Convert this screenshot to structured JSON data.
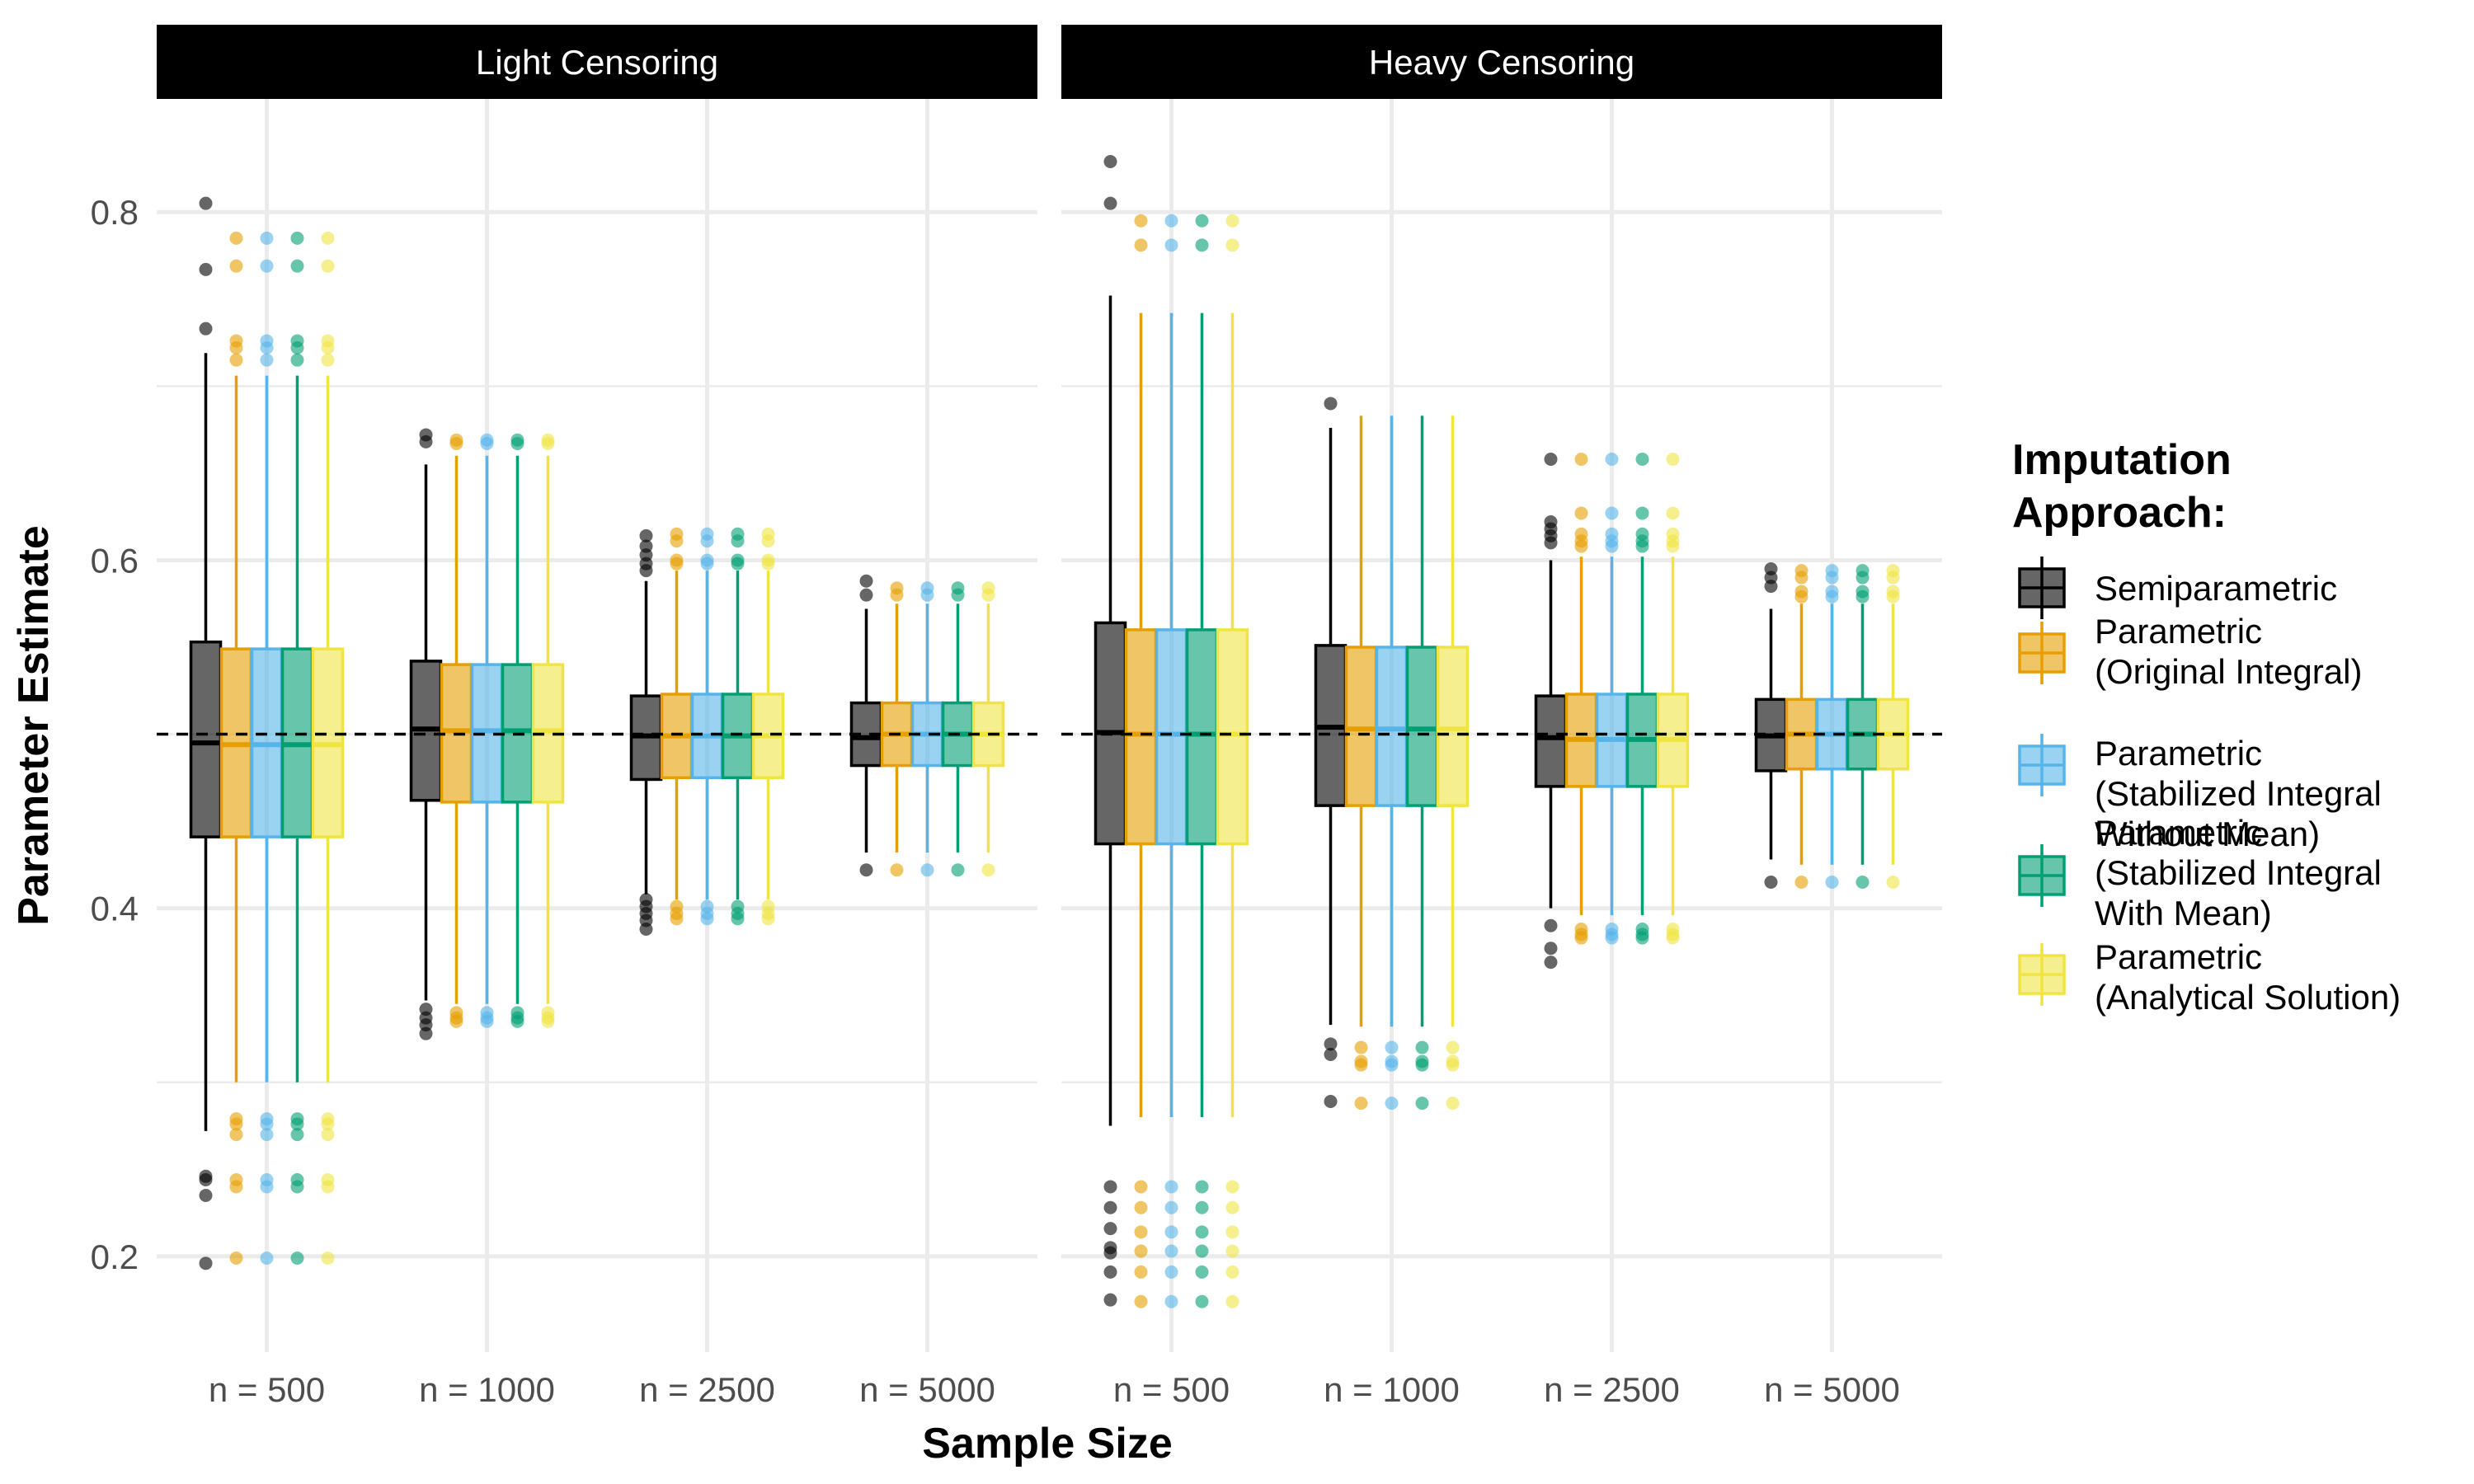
{
  "chart_data": {
    "type": "boxplot",
    "xlabel": "Sample Size",
    "ylabel": "Parameter Estimate",
    "ylim": [
      0.145,
      0.865
    ],
    "y_ticks": [
      0.2,
      0.4,
      0.6,
      0.8
    ],
    "y_tick_labels": [
      "0.2",
      "0.4",
      "0.6",
      "0.8"
    ],
    "reference_line": 0.5,
    "grid": true,
    "legend_position": "right",
    "legend_title": [
      "Imputation",
      "Approach:"
    ],
    "categories": [
      "n = 500",
      "n = 1000",
      "n = 2500",
      "n = 5000"
    ],
    "series": [
      {
        "name": "Semiparametric",
        "label_lines": [
          "Semiparametric"
        ],
        "color": "#000000"
      },
      {
        "name": "Parametric (Original Integral)",
        "label_lines": [
          "Parametric",
          "(Original Integral)"
        ],
        "color": "#E69F00"
      },
      {
        "name": "Parametric (Stabilized Integral Without Mean)",
        "label_lines": [
          "Parametric",
          "(Stabilized Integral",
          "Without Mean)"
        ],
        "color": "#56B4E9"
      },
      {
        "name": "Parametric (Stabilized Integral With Mean)",
        "label_lines": [
          "Parametric",
          "(Stabilized Integral",
          " With Mean)"
        ],
        "color": "#009E73"
      },
      {
        "name": "Parametric (Analytical Solution)",
        "label_lines": [
          "Parametric",
          "(Analytical Solution)"
        ],
        "color": "#F0E442"
      }
    ],
    "panels": [
      {
        "title": "Light Censoring",
        "groups": [
          {
            "boxes": [
              {
                "low": 0.272,
                "q1": 0.441,
                "median": 0.495,
                "q3": 0.553,
                "high": 0.719,
                "outliers": [
                  0.805,
                  0.767,
                  0.733,
                  0.246,
                  0.244,
                  0.235,
                  0.196
                ]
              },
              {
                "low": 0.3,
                "q1": 0.441,
                "median": 0.494,
                "q3": 0.549,
                "high": 0.706,
                "outliers": [
                  0.785,
                  0.769,
                  0.726,
                  0.722,
                  0.715,
                  0.279,
                  0.276,
                  0.27,
                  0.244,
                  0.24,
                  0.199
                ]
              },
              {
                "low": 0.3,
                "q1": 0.441,
                "median": 0.494,
                "q3": 0.549,
                "high": 0.706,
                "outliers": [
                  0.785,
                  0.769,
                  0.726,
                  0.722,
                  0.715,
                  0.279,
                  0.276,
                  0.27,
                  0.244,
                  0.24,
                  0.199
                ]
              },
              {
                "low": 0.3,
                "q1": 0.441,
                "median": 0.494,
                "q3": 0.549,
                "high": 0.706,
                "outliers": [
                  0.785,
                  0.769,
                  0.726,
                  0.722,
                  0.715,
                  0.279,
                  0.276,
                  0.27,
                  0.244,
                  0.24,
                  0.199
                ]
              },
              {
                "low": 0.3,
                "q1": 0.441,
                "median": 0.494,
                "q3": 0.549,
                "high": 0.706,
                "outliers": [
                  0.785,
                  0.769,
                  0.726,
                  0.722,
                  0.715,
                  0.279,
                  0.276,
                  0.27,
                  0.244,
                  0.24,
                  0.199
                ]
              }
            ]
          },
          {
            "boxes": [
              {
                "low": 0.347,
                "q1": 0.462,
                "median": 0.503,
                "q3": 0.542,
                "high": 0.655,
                "outliers": [
                  0.672,
                  0.668,
                  0.342,
                  0.337,
                  0.333,
                  0.328
                ]
              },
              {
                "low": 0.345,
                "q1": 0.461,
                "median": 0.502,
                "q3": 0.54,
                "high": 0.66,
                "outliers": [
                  0.669,
                  0.667,
                  0.34,
                  0.337,
                  0.335
                ]
              },
              {
                "low": 0.345,
                "q1": 0.461,
                "median": 0.502,
                "q3": 0.54,
                "high": 0.66,
                "outliers": [
                  0.669,
                  0.667,
                  0.34,
                  0.337,
                  0.335
                ]
              },
              {
                "low": 0.345,
                "q1": 0.461,
                "median": 0.502,
                "q3": 0.54,
                "high": 0.66,
                "outliers": [
                  0.669,
                  0.667,
                  0.34,
                  0.337,
                  0.335
                ]
              },
              {
                "low": 0.345,
                "q1": 0.461,
                "median": 0.502,
                "q3": 0.54,
                "high": 0.66,
                "outliers": [
                  0.669,
                  0.667,
                  0.34,
                  0.337,
                  0.335
                ]
              }
            ]
          },
          {
            "boxes": [
              {
                "low": 0.408,
                "q1": 0.474,
                "median": 0.499,
                "q3": 0.522,
                "high": 0.588,
                "outliers": [
                  0.614,
                  0.608,
                  0.603,
                  0.598,
                  0.594,
                  0.405,
                  0.401,
                  0.397,
                  0.393,
                  0.388
                ]
              },
              {
                "low": 0.405,
                "q1": 0.475,
                "median": 0.499,
                "q3": 0.523,
                "high": 0.594,
                "outliers": [
                  0.615,
                  0.611,
                  0.6,
                  0.598,
                  0.401,
                  0.397,
                  0.394
                ]
              },
              {
                "low": 0.405,
                "q1": 0.475,
                "median": 0.499,
                "q3": 0.523,
                "high": 0.594,
                "outliers": [
                  0.615,
                  0.611,
                  0.6,
                  0.598,
                  0.401,
                  0.397,
                  0.394
                ]
              },
              {
                "low": 0.405,
                "q1": 0.475,
                "median": 0.499,
                "q3": 0.523,
                "high": 0.594,
                "outliers": [
                  0.615,
                  0.611,
                  0.6,
                  0.598,
                  0.401,
                  0.397,
                  0.394
                ]
              },
              {
                "low": 0.405,
                "q1": 0.475,
                "median": 0.499,
                "q3": 0.523,
                "high": 0.594,
                "outliers": [
                  0.615,
                  0.611,
                  0.6,
                  0.598,
                  0.401,
                  0.397,
                  0.394
                ]
              }
            ]
          },
          {
            "boxes": [
              {
                "low": 0.432,
                "q1": 0.482,
                "median": 0.498,
                "q3": 0.518,
                "high": 0.572,
                "outliers": [
                  0.588,
                  0.58,
                  0.422
                ]
              },
              {
                "low": 0.432,
                "q1": 0.482,
                "median": 0.5,
                "q3": 0.518,
                "high": 0.575,
                "outliers": [
                  0.584,
                  0.58,
                  0.422
                ]
              },
              {
                "low": 0.432,
                "q1": 0.482,
                "median": 0.5,
                "q3": 0.518,
                "high": 0.575,
                "outliers": [
                  0.584,
                  0.58,
                  0.422
                ]
              },
              {
                "low": 0.432,
                "q1": 0.482,
                "median": 0.5,
                "q3": 0.518,
                "high": 0.575,
                "outliers": [
                  0.584,
                  0.58,
                  0.422
                ]
              },
              {
                "low": 0.432,
                "q1": 0.482,
                "median": 0.5,
                "q3": 0.518,
                "high": 0.575,
                "outliers": [
                  0.584,
                  0.58,
                  0.422
                ]
              }
            ]
          }
        ]
      },
      {
        "title": "Heavy Censoring",
        "groups": [
          {
            "boxes": [
              {
                "low": 0.275,
                "q1": 0.437,
                "median": 0.501,
                "q3": 0.564,
                "high": 0.752,
                "outliers": [
                  0.829,
                  0.805,
                  0.24,
                  0.228,
                  0.216,
                  0.205,
                  0.202,
                  0.191,
                  0.175
                ]
              },
              {
                "low": 0.28,
                "q1": 0.437,
                "median": 0.5,
                "q3": 0.56,
                "high": 0.742,
                "outliers": [
                  0.795,
                  0.781,
                  0.24,
                  0.228,
                  0.214,
                  0.203,
                  0.191,
                  0.174
                ]
              },
              {
                "low": 0.28,
                "q1": 0.437,
                "median": 0.5,
                "q3": 0.56,
                "high": 0.742,
                "outliers": [
                  0.795,
                  0.781,
                  0.24,
                  0.228,
                  0.214,
                  0.203,
                  0.191,
                  0.174
                ]
              },
              {
                "low": 0.28,
                "q1": 0.437,
                "median": 0.5,
                "q3": 0.56,
                "high": 0.742,
                "outliers": [
                  0.795,
                  0.781,
                  0.24,
                  0.228,
                  0.214,
                  0.203,
                  0.191,
                  0.174
                ]
              },
              {
                "low": 0.28,
                "q1": 0.437,
                "median": 0.5,
                "q3": 0.56,
                "high": 0.742,
                "outliers": [
                  0.795,
                  0.781,
                  0.24,
                  0.228,
                  0.214,
                  0.203,
                  0.191,
                  0.174
                ]
              }
            ]
          },
          {
            "boxes": [
              {
                "low": 0.333,
                "q1": 0.459,
                "median": 0.504,
                "q3": 0.551,
                "high": 0.676,
                "outliers": [
                  0.69,
                  0.322,
                  0.316,
                  0.289
                ]
              },
              {
                "low": 0.332,
                "q1": 0.459,
                "median": 0.503,
                "q3": 0.55,
                "high": 0.683,
                "outliers": [
                  0.32,
                  0.312,
                  0.31,
                  0.288
                ]
              },
              {
                "low": 0.332,
                "q1": 0.459,
                "median": 0.503,
                "q3": 0.55,
                "high": 0.683,
                "outliers": [
                  0.32,
                  0.312,
                  0.31,
                  0.288
                ]
              },
              {
                "low": 0.332,
                "q1": 0.459,
                "median": 0.503,
                "q3": 0.55,
                "high": 0.683,
                "outliers": [
                  0.32,
                  0.312,
                  0.31,
                  0.288
                ]
              },
              {
                "low": 0.332,
                "q1": 0.459,
                "median": 0.503,
                "q3": 0.55,
                "high": 0.683,
                "outliers": [
                  0.32,
                  0.312,
                  0.31,
                  0.288
                ]
              }
            ]
          },
          {
            "boxes": [
              {
                "low": 0.4,
                "q1": 0.47,
                "median": 0.498,
                "q3": 0.522,
                "high": 0.6,
                "outliers": [
                  0.658,
                  0.622,
                  0.618,
                  0.614,
                  0.61,
                  0.39,
                  0.377,
                  0.369
                ]
              },
              {
                "low": 0.396,
                "q1": 0.47,
                "median": 0.497,
                "q3": 0.523,
                "high": 0.602,
                "outliers": [
                  0.658,
                  0.627,
                  0.615,
                  0.611,
                  0.608,
                  0.388,
                  0.385,
                  0.383
                ]
              },
              {
                "low": 0.396,
                "q1": 0.47,
                "median": 0.497,
                "q3": 0.523,
                "high": 0.602,
                "outliers": [
                  0.658,
                  0.627,
                  0.615,
                  0.611,
                  0.608,
                  0.388,
                  0.385,
                  0.383
                ]
              },
              {
                "low": 0.396,
                "q1": 0.47,
                "median": 0.497,
                "q3": 0.523,
                "high": 0.602,
                "outliers": [
                  0.658,
                  0.627,
                  0.615,
                  0.611,
                  0.608,
                  0.388,
                  0.385,
                  0.383
                ]
              },
              {
                "low": 0.396,
                "q1": 0.47,
                "median": 0.497,
                "q3": 0.523,
                "high": 0.602,
                "outliers": [
                  0.658,
                  0.627,
                  0.615,
                  0.611,
                  0.608,
                  0.388,
                  0.385,
                  0.383
                ]
              }
            ]
          },
          {
            "boxes": [
              {
                "low": 0.428,
                "q1": 0.479,
                "median": 0.499,
                "q3": 0.52,
                "high": 0.572,
                "outliers": [
                  0.595,
                  0.59,
                  0.585,
                  0.415
                ]
              },
              {
                "low": 0.425,
                "q1": 0.48,
                "median": 0.5,
                "q3": 0.52,
                "high": 0.575,
                "outliers": [
                  0.594,
                  0.59,
                  0.582,
                  0.579,
                  0.415
                ]
              },
              {
                "low": 0.425,
                "q1": 0.48,
                "median": 0.5,
                "q3": 0.52,
                "high": 0.575,
                "outliers": [
                  0.594,
                  0.59,
                  0.582,
                  0.579,
                  0.415
                ]
              },
              {
                "low": 0.425,
                "q1": 0.48,
                "median": 0.5,
                "q3": 0.52,
                "high": 0.575,
                "outliers": [
                  0.594,
                  0.59,
                  0.582,
                  0.579,
                  0.415
                ]
              },
              {
                "low": 0.425,
                "q1": 0.48,
                "median": 0.5,
                "q3": 0.52,
                "high": 0.575,
                "outliers": [
                  0.594,
                  0.59,
                  0.582,
                  0.579,
                  0.415
                ]
              }
            ]
          }
        ]
      }
    ]
  }
}
